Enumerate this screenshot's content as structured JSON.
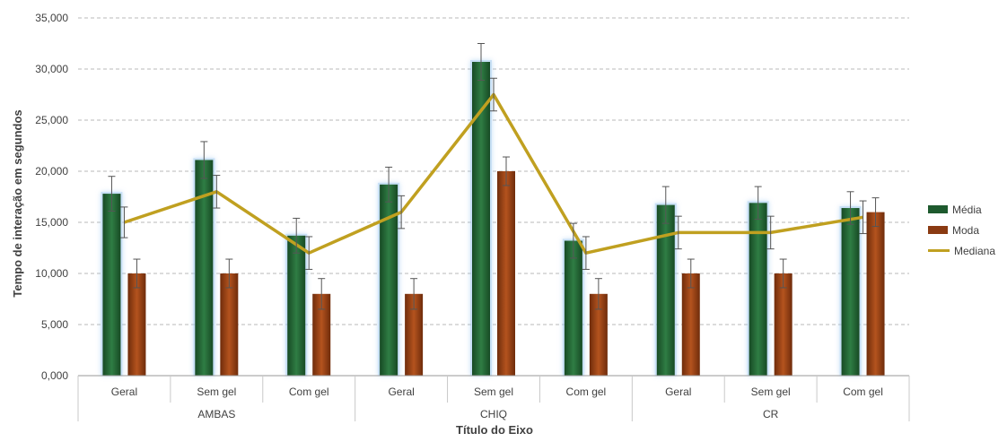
{
  "chart_data": {
    "type": "bar",
    "groups": [
      "AMBAS",
      "CHIQ",
      "CR"
    ],
    "categories": [
      "Geral",
      "Sem gel",
      "Com gel",
      "Geral",
      "Sem gel",
      "Com gel",
      "Geral",
      "Sem gel",
      "Com gel"
    ],
    "series": [
      {
        "name": "Média",
        "kind": "bar",
        "color": "#1e5a2e",
        "values": [
          17.8,
          21.1,
          13.7,
          18.7,
          30.7,
          13.2,
          16.7,
          16.9,
          16.4
        ],
        "error": [
          1.7,
          1.8,
          1.7,
          1.7,
          1.8,
          1.7,
          1.8,
          1.6,
          1.6
        ]
      },
      {
        "name": "Moda",
        "kind": "bar",
        "color": "#8a3a12",
        "values": [
          10,
          10,
          8,
          8,
          20,
          8,
          10,
          10,
          16
        ],
        "error": [
          1.4,
          1.4,
          1.5,
          1.5,
          1.4,
          1.5,
          1.4,
          1.4,
          1.4
        ]
      },
      {
        "name": "Mediana",
        "kind": "line",
        "color": "#c0a020",
        "values": [
          15,
          18,
          12,
          16,
          27.5,
          12,
          14,
          14,
          15.5
        ],
        "error": [
          1.5,
          1.6,
          1.6,
          1.6,
          1.6,
          1.6,
          1.6,
          1.6,
          1.6
        ]
      }
    ],
    "ylabel": "Tempo de interação em segundos",
    "xlabel": "Título do Eixo",
    "ylim": [
      0,
      35
    ],
    "yticks": [
      "0,000",
      "5,000",
      "10,000",
      "15,000",
      "20,000",
      "25,000",
      "30,000",
      "35,000"
    ],
    "grid": true,
    "legend_position": "right"
  }
}
